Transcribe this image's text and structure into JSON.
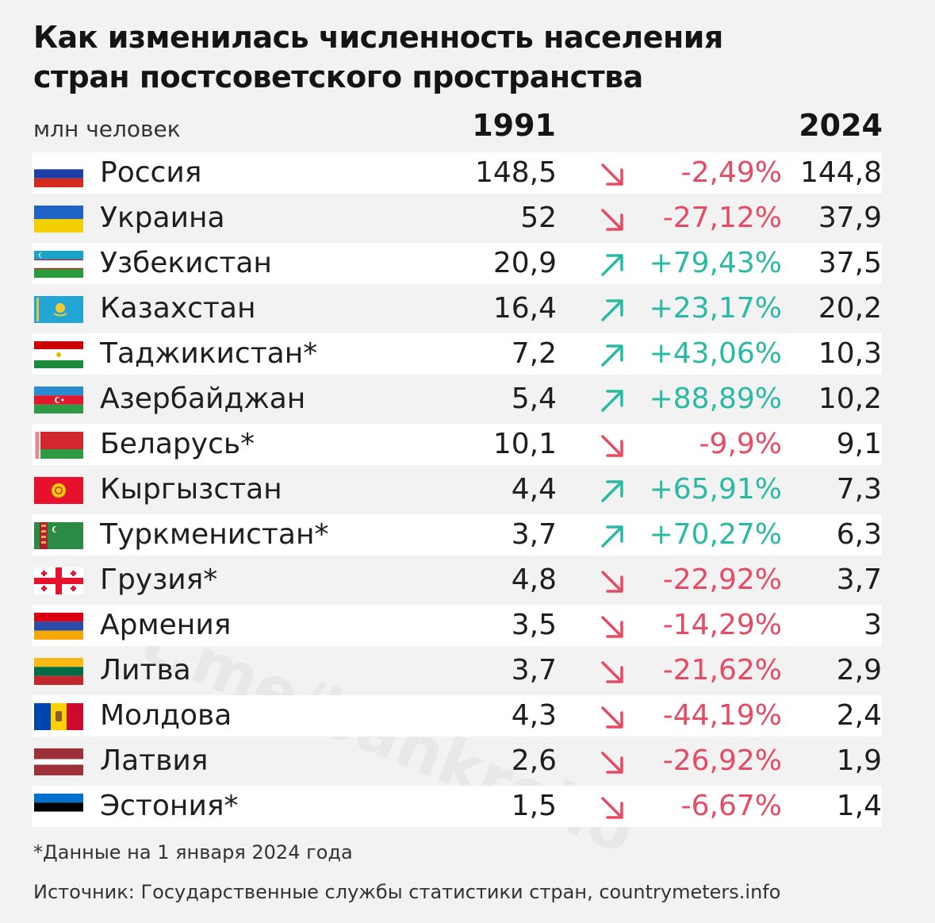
{
  "title_line1": "Как изменилась численность населения",
  "title_line2": "стран постсоветского пространства",
  "units": "млн человек",
  "col_1991": "1991",
  "col_2024": "2024",
  "note": "*Данные на 1 января 2024 года",
  "source": "Источник: Государственные службы статистики стран, countrymeters.info",
  "watermark": "t.me/bankrollo",
  "colors": {
    "down": "#e54b63",
    "up": "#2ab9a4",
    "stripe": "#ffffff",
    "background": "#f2f2f3"
  },
  "chart_data": {
    "type": "table",
    "title": "Как изменилась численность населения стран постсоветского пространства",
    "columns": [
      "1991",
      "",
      "2024"
    ],
    "rows": [
      {
        "country": "Россия",
        "flag": "russia-flag",
        "v1991": "148,5",
        "direction": "down",
        "change": "-2,49%",
        "v2024": "144,8"
      },
      {
        "country": "Украина",
        "flag": "ukraine-flag",
        "v1991": "52",
        "direction": "down",
        "change": "-27,12%",
        "v2024": "37,9"
      },
      {
        "country": "Узбекистан",
        "flag": "uzbekistan-flag",
        "v1991": "20,9",
        "direction": "up",
        "change": "+79,43%",
        "v2024": "37,5"
      },
      {
        "country": "Казахстан",
        "flag": "kazakhstan-flag",
        "v1991": "16,4",
        "direction": "up",
        "change": "+23,17%",
        "v2024": "20,2"
      },
      {
        "country": "Таджикистан*",
        "flag": "tajikistan-flag",
        "v1991": "7,2",
        "direction": "up",
        "change": "+43,06%",
        "v2024": "10,3"
      },
      {
        "country": "Азербайджан",
        "flag": "azerbaijan-flag",
        "v1991": "5,4",
        "direction": "up",
        "change": "+88,89%",
        "v2024": "10,2"
      },
      {
        "country": "Беларусь*",
        "flag": "belarus-flag",
        "v1991": "10,1",
        "direction": "down",
        "change": "-9,9%",
        "v2024": "9,1"
      },
      {
        "country": "Кыргызстан",
        "flag": "kyrgyzstan-flag",
        "v1991": "4,4",
        "direction": "up",
        "change": "+65,91%",
        "v2024": "7,3"
      },
      {
        "country": "Туркменистан*",
        "flag": "turkmenistan-flag",
        "v1991": "3,7",
        "direction": "up",
        "change": "+70,27%",
        "v2024": "6,3"
      },
      {
        "country": "Грузия*",
        "flag": "georgia-flag",
        "v1991": "4,8",
        "direction": "down",
        "change": "-22,92%",
        "v2024": "3,7"
      },
      {
        "country": "Армения",
        "flag": "armenia-flag",
        "v1991": "3,5",
        "direction": "down",
        "change": "-14,29%",
        "v2024": "3"
      },
      {
        "country": "Литва",
        "flag": "lithuania-flag",
        "v1991": "3,7",
        "direction": "down",
        "change": "-21,62%",
        "v2024": "2,9"
      },
      {
        "country": "Молдова",
        "flag": "moldova-flag",
        "v1991": "4,3",
        "direction": "down",
        "change": "-44,19%",
        "v2024": "2,4"
      },
      {
        "country": "Латвия",
        "flag": "latvia-flag",
        "v1991": "2,6",
        "direction": "down",
        "change": "-26,92%",
        "v2024": "1,9"
      },
      {
        "country": "Эстония*",
        "flag": "estonia-flag",
        "v1991": "1,5",
        "direction": "down",
        "change": "-6,67%",
        "v2024": "1,4"
      }
    ]
  }
}
